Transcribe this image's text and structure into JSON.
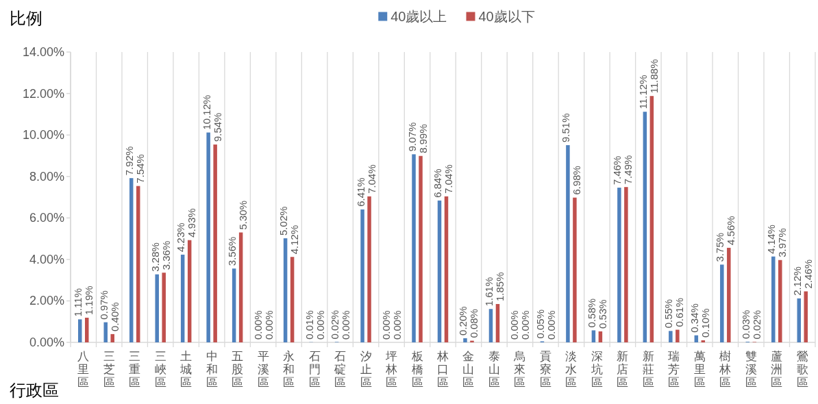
{
  "chart_data": {
    "type": "bar",
    "ylabel": "比例",
    "xlabel": "行政區",
    "categories": [
      "八里區",
      "三芝區",
      "三重區",
      "三峽區",
      "土城區",
      "中和區",
      "五股區",
      "平溪區",
      "永和區",
      "石門區",
      "石碇區",
      "汐止區",
      "坪林區",
      "板橋區",
      "林口區",
      "金山區",
      "泰山區",
      "烏來區",
      "貢寮區",
      "淡水區",
      "深坑區",
      "新店區",
      "新莊區",
      "瑞芳區",
      "萬里區",
      "樹林區",
      "雙溪區",
      "蘆洲區",
      "鶯歌區"
    ],
    "series": [
      {
        "name": "40歲以上",
        "color": "#4f81bd",
        "values": [
          1.11,
          0.97,
          7.92,
          3.28,
          4.23,
          10.12,
          3.56,
          0.0,
          5.02,
          0.01,
          0.02,
          6.41,
          0.0,
          9.07,
          6.84,
          0.2,
          1.61,
          0.0,
          0.05,
          9.51,
          0.58,
          7.46,
          11.12,
          0.55,
          0.34,
          3.75,
          0.03,
          4.14,
          2.12
        ],
        "value_labels": [
          "1.11%",
          "0.97%",
          "7.92%",
          "3.28%",
          "4.23%",
          "10.12%",
          "3.56%",
          "0.00%",
          "5.02%",
          "0.01%",
          "0.02%",
          "6.41%",
          "0.00%",
          "9.07%",
          "6.84%",
          "0.20%",
          "1.61%",
          "0.00%",
          "0.05%",
          "9.51%",
          "0.58%",
          "7.46%",
          "11.12%",
          "0.55%",
          "0.34%",
          "3.75%",
          "0.03%",
          "4.14%",
          "2.12%"
        ]
      },
      {
        "name": "40歲以下",
        "color": "#c0504d",
        "values": [
          1.19,
          0.4,
          7.54,
          3.36,
          4.93,
          9.54,
          5.3,
          0.0,
          4.12,
          0.0,
          0.0,
          7.04,
          0.0,
          8.99,
          7.04,
          0.08,
          1.85,
          0.0,
          0.0,
          6.98,
          0.53,
          7.49,
          11.88,
          0.61,
          0.1,
          4.56,
          0.02,
          3.97,
          2.46
        ],
        "value_labels": [
          "1.19%",
          "0.40%",
          "7.54%",
          "3.36%",
          "4.93%",
          "9.54%",
          "5.30%",
          "0.00%",
          "4.12%",
          "0.00%",
          "0.00%",
          "7.04%",
          "0.00%",
          "8.99%",
          "7.04%",
          "0.08%",
          "1.85%",
          "0.00%",
          "0.00%",
          "6.98%",
          "0.53%",
          "7.49%",
          "11.88%",
          "0.61%",
          "0.10%",
          "4.56%",
          "0.02%",
          "3.97%",
          "2.46%"
        ]
      }
    ],
    "ylim": [
      0,
      14
    ],
    "yticks": [
      {
        "value": 0,
        "label": "0.00%"
      },
      {
        "value": 2,
        "label": "2.00%"
      },
      {
        "value": 4,
        "label": "4.00%"
      },
      {
        "value": 6,
        "label": "6.00%"
      },
      {
        "value": 8,
        "label": "8.00%"
      },
      {
        "value": 10,
        "label": "10.00%"
      },
      {
        "value": 12,
        "label": "12.00%"
      },
      {
        "value": 14,
        "label": "14.00%"
      }
    ],
    "grid": "x",
    "legend": "top"
  }
}
